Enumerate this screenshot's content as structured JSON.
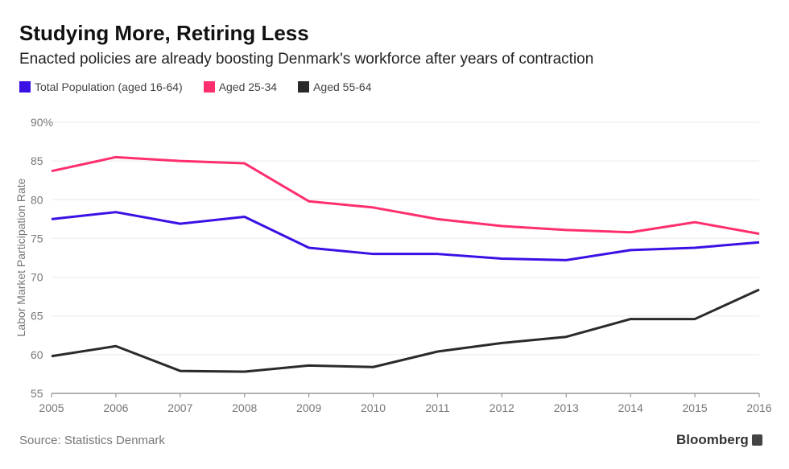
{
  "chart_data": {
    "type": "line",
    "title": "Studying More, Retiring Less",
    "subtitle": "Enacted policies are already boosting Denmark's workforce after years of contraction",
    "xlabel": "",
    "ylabel": "Labor Market Participation Rate",
    "x": [
      2005,
      2006,
      2007,
      2008,
      2009,
      2010,
      2011,
      2012,
      2013,
      2014,
      2015,
      2016
    ],
    "ylim": [
      55,
      90
    ],
    "yticks": [
      "90%",
      "85",
      "80",
      "75",
      "70",
      "65",
      "60",
      "55"
    ],
    "ytick_values": [
      90,
      85,
      80,
      75,
      70,
      65,
      60,
      55
    ],
    "grid": true,
    "legend_placement": "top-left",
    "series": [
      {
        "name": "Total Population (aged 16-64)",
        "color": "#3a10e5",
        "values": [
          77.5,
          78.4,
          76.9,
          77.8,
          73.8,
          73.0,
          73.0,
          72.4,
          72.2,
          73.5,
          73.8,
          74.5
        ]
      },
      {
        "name": "Aged 25-34",
        "color": "#ff2f6e",
        "values": [
          83.7,
          85.5,
          85.0,
          84.7,
          79.8,
          79.0,
          77.5,
          76.6,
          76.1,
          75.8,
          77.1,
          75.6
        ]
      },
      {
        "name": "Aged 55-64",
        "color": "#2a2a2a",
        "values": [
          59.8,
          61.1,
          57.9,
          57.8,
          58.6,
          58.4,
          60.4,
          61.5,
          62.3,
          64.6,
          64.6,
          68.4
        ]
      }
    ]
  },
  "footer": {
    "source": "Source: Statistics Denmark",
    "brand": "Bloomberg"
  }
}
